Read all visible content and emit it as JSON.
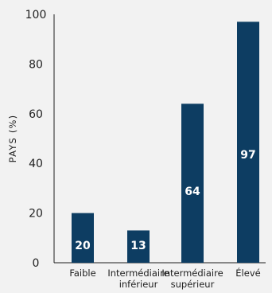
{
  "chart_data": {
    "type": "bar",
    "categories": [
      [
        "Faible"
      ],
      [
        "Intermédiaire",
        "inférieur"
      ],
      [
        "Intermédiaire",
        "supérieur"
      ],
      [
        "Élevé"
      ]
    ],
    "values": [
      20,
      13,
      64,
      97
    ],
    "data_labels": [
      "20",
      "13",
      "64",
      "97"
    ],
    "ylabel": "PAYS (%)",
    "ylim": [
      0,
      100
    ],
    "yticks": [
      0,
      20,
      40,
      60,
      80,
      100
    ],
    "bar_color": "#0d3d62",
    "grid": false
  }
}
